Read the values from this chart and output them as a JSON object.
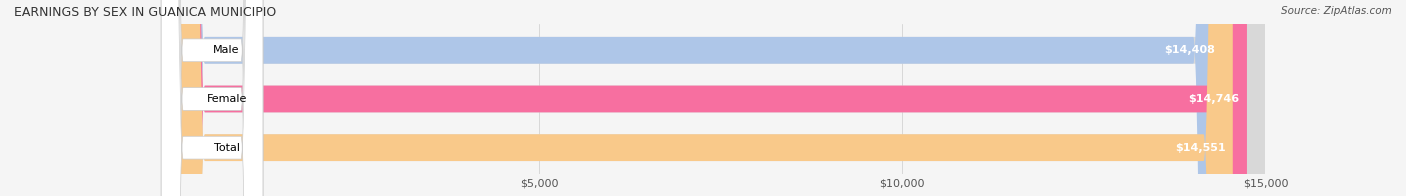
{
  "title": "EARNINGS BY SEX IN GUANICA MUNICIPIO",
  "source": "Source: ZipAtlas.com",
  "categories": [
    "Male",
    "Female",
    "Total"
  ],
  "values": [
    14408,
    14746,
    14551
  ],
  "bar_colors": [
    "#aec6e8",
    "#f76fa0",
    "#f9c98a"
  ],
  "bar_labels": [
    "$14,408",
    "$14,746",
    "$14,551"
  ],
  "xlim": [
    0,
    15000
  ],
  "xticks": [
    5000,
    10000,
    15000
  ],
  "xticklabels": [
    "$5,000",
    "$10,000",
    "$15,000"
  ],
  "background_color": "#f0f0f0",
  "bar_bg_color": "#e0e0e0",
  "title_fontsize": 9,
  "label_fontsize": 8,
  "value_fontsize": 8,
  "source_fontsize": 7.5,
  "bar_height": 0.55,
  "figsize": [
    14.06,
    1.96
  ],
  "dpi": 100
}
